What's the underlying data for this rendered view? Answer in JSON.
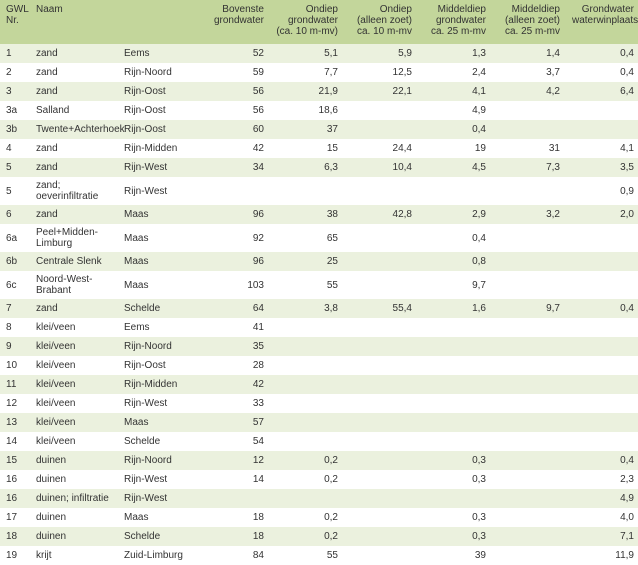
{
  "columns": [
    {
      "label": "GWL\nNr.",
      "align": "left"
    },
    {
      "label": "Naam",
      "align": "left"
    },
    {
      "label": "",
      "align": "left"
    },
    {
      "label": "Bovenste\ngrondwater",
      "align": "right"
    },
    {
      "label": "Ondiep\ngrondwater\n(ca. 10 m-mv)",
      "align": "right"
    },
    {
      "label": "Ondiep\n(alleen zoet)\nca. 10 m-mv",
      "align": "right"
    },
    {
      "label": "Middeldiep\ngrondwater\nca. 25 m-mv",
      "align": "right"
    },
    {
      "label": "Middeldiep\n(alleen zoet)\nca. 25 m-mv",
      "align": "right"
    },
    {
      "label": "Grondwater\nwaterwinplaatsen",
      "align": "right"
    }
  ],
  "rows": [
    [
      "1",
      "zand",
      "Eems",
      "52",
      "5,1",
      "5,9",
      "1,3",
      "1,4",
      "0,4"
    ],
    [
      "2",
      "zand",
      "Rijn-Noord",
      "59",
      "7,7",
      "12,5",
      "2,4",
      "3,7",
      "0,4"
    ],
    [
      "3",
      "zand",
      "Rijn-Oost",
      "56",
      "21,9",
      "22,1",
      "4,1",
      "4,2",
      "6,4"
    ],
    [
      "3a",
      "Salland",
      "Rijn-Oost",
      "56",
      "18,6",
      "",
      "4,9",
      "",
      ""
    ],
    [
      "3b",
      "Twente+Achterhoek",
      "Rijn-Oost",
      "60",
      "37",
      "",
      "0,4",
      "",
      ""
    ],
    [
      "4",
      "zand",
      "Rijn-Midden",
      "42",
      "15",
      "24,4",
      "19",
      "31",
      "4,1"
    ],
    [
      "5",
      "zand",
      "Rijn-West",
      "34",
      "6,3",
      "10,4",
      "4,5",
      "7,3",
      "3,5"
    ],
    [
      "5",
      "zand; oeverinfiltratie",
      "Rijn-West",
      "",
      "",
      "",
      "",
      "",
      "0,9"
    ],
    [
      "6",
      "zand",
      "Maas",
      "96",
      "38",
      "42,8",
      "2,9",
      "3,2",
      "2,0"
    ],
    [
      "6a",
      "Peel+Midden-Limburg",
      "Maas",
      "92",
      "65",
      "",
      "0,4",
      "",
      ""
    ],
    [
      "6b",
      "Centrale Slenk",
      "Maas",
      "96",
      "25",
      "",
      "0,8",
      "",
      ""
    ],
    [
      "6c",
      "Noord-West-Brabant",
      "Maas",
      "103",
      "55",
      "",
      "9,7",
      "",
      ""
    ],
    [
      "7",
      "zand",
      "Schelde",
      "64",
      "3,8",
      "55,4",
      "1,6",
      "9,7",
      "0,4"
    ],
    [
      "8",
      "klei/veen",
      "Eems",
      "41",
      "",
      "",
      "",
      "",
      ""
    ],
    [
      "9",
      "klei/veen",
      "Rijn-Noord",
      "35",
      "",
      "",
      "",
      "",
      ""
    ],
    [
      "10",
      "klei/veen",
      "Rijn-Oost",
      "28",
      "",
      "",
      "",
      "",
      ""
    ],
    [
      "11",
      "klei/veen",
      "Rijn-Midden",
      "42",
      "",
      "",
      "",
      "",
      ""
    ],
    [
      "12",
      "klei/veen",
      "Rijn-West",
      "33",
      "",
      "",
      "",
      "",
      ""
    ],
    [
      "13",
      "klei/veen",
      "Maas",
      "57",
      "",
      "",
      "",
      "",
      ""
    ],
    [
      "14",
      "klei/veen",
      "Schelde",
      "54",
      "",
      "",
      "",
      "",
      ""
    ],
    [
      "15",
      "duinen",
      "Rijn-Noord",
      "12",
      "0,2",
      "",
      "0,3",
      "",
      "0,4"
    ],
    [
      "16",
      "duinen",
      "Rijn-West",
      "14",
      "0,2",
      "",
      "0,3",
      "",
      "2,3"
    ],
    [
      "16",
      "duinen; infiltratie",
      "Rijn-West",
      "",
      "",
      "",
      "",
      "",
      "4,9"
    ],
    [
      "17",
      "duinen",
      "Maas",
      "18",
      "0,2",
      "",
      "0,3",
      "",
      "4,0"
    ],
    [
      "18",
      "duinen",
      "Schelde",
      "18",
      "0,2",
      "",
      "0,3",
      "",
      "7,1"
    ],
    [
      "19",
      "krijt",
      "Zuid-Limburg",
      "84",
      "55",
      "",
      "39",
      "",
      "11,9"
    ]
  ],
  "colors": {
    "header_bg": "#c3d69b",
    "row_even": "#ebf1de",
    "row_odd": "#ffffff"
  }
}
